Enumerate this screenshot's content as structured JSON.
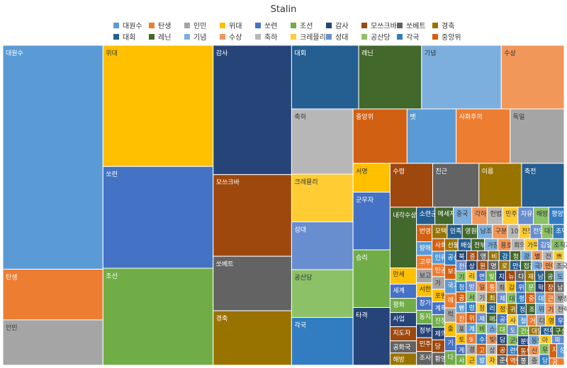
{
  "chart_data": {
    "type": "treemap",
    "title": "Stalin",
    "legend_placement": "top",
    "categories": [
      "대원수",
      "탄생",
      "인민",
      "위대",
      "쏘련",
      "조선",
      "감사",
      "모쓰크바",
      "쏘베트",
      "경축",
      "대회",
      "레닌",
      "기념",
      "수상",
      "축하",
      "크레믈리",
      "성대",
      "공산당",
      "각국",
      "중앙위"
    ],
    "colors": [
      "#5b9bd5",
      "#ed7d31",
      "#a5a5a5",
      "#ffc000",
      "#4472c4",
      "#70ad47",
      "#264478",
      "#9e480e",
      "#636363",
      "#997300",
      "#255e91",
      "#43682b",
      "#7cafdd",
      "#f1975a",
      "#b7b7b7",
      "#ffcd33",
      "#698ed0",
      "#8cc168",
      "#327dc2",
      "#d26012"
    ],
    "top_items": [
      {
        "name": "대원수",
        "value": 420
      },
      {
        "name": "탄생",
        "value": 95
      },
      {
        "name": "인민",
        "value": 85
      },
      {
        "name": "위대",
        "value": 250
      },
      {
        "name": "쏘련",
        "value": 210
      },
      {
        "name": "조선",
        "value": 200
      },
      {
        "name": "감사",
        "value": 190
      },
      {
        "name": "모쓰크바",
        "value": 120
      },
      {
        "name": "쏘베트",
        "value": 80
      },
      {
        "name": "경축",
        "value": 80
      },
      {
        "name": "대회",
        "value": 80
      },
      {
        "name": "레닌",
        "value": 75
      },
      {
        "name": "기념",
        "value": 95
      },
      {
        "name": "수상",
        "value": 75
      },
      {
        "name": "축하",
        "value": 75
      },
      {
        "name": "크레믈리",
        "value": 55
      },
      {
        "name": "성대",
        "value": 55
      },
      {
        "name": "공산당",
        "value": 55
      },
      {
        "name": "각국",
        "value": 55
      },
      {
        "name": "중앙위",
        "value": 55
      },
      {
        "name": "뱃",
        "value": 50
      },
      {
        "name": "사회주의",
        "value": 55
      },
      {
        "name": "독일",
        "value": 55
      },
      {
        "name": "서명",
        "value": 20
      },
      {
        "name": "군무자",
        "value": 40
      },
      {
        "name": "승리",
        "value": 40
      },
      {
        "name": "타격",
        "value": 40
      },
      {
        "name": "수령",
        "value": 35
      },
      {
        "name": "친근",
        "value": 38
      },
      {
        "name": "이름",
        "value": 35
      },
      {
        "name": "축전",
        "value": 35
      },
      {
        "name": "내각수상",
        "value": 30
      }
    ],
    "grid_words": [
      "만세",
      "세계",
      "평화",
      "사업",
      "지도자",
      "공화국",
      "해방",
      "소련군",
      "메세지",
      "중국",
      "각하",
      "헌법",
      "민주",
      "자유",
      "해방자",
      "평양",
      "번영",
      "향해",
      "고무자",
      "보고",
      "서한",
      "참가",
      "동지",
      "정부",
      "민주주의",
      "조사",
      "모택동",
      "민족",
      "영원",
      "남조선",
      "구분대",
      "10월혁명",
      "전쟁",
      "전달",
      "대동령",
      "조약",
      "사회",
      "인류",
      "민공",
      "가",
      "포병",
      "계획",
      "진정",
      "제의",
      "당",
      "황영",
      "선물",
      "배설",
      "전부",
      "가장",
      "용호",
      "회의",
      "가득",
      "김일성",
      "조직자",
      "공산주의",
      "보장",
      "국가",
      "레",
      "럭",
      "출",
      "기",
      "다",
      "북",
      "증",
      "앵",
      "비",
      "강",
      "청",
      "광",
      "별",
      "전",
      "쁘",
      "전주",
      "기",
      "청",
      "공",
      "빵",
      "진",
      "포",
      "토",
      "게",
      "사",
      "상",
      "원",
      "명",
      "로",
      "만족보위성",
      "접견",
      "국제",
      "만대",
      "조국",
      "리",
      "방",
      "서",
      "령",
      "위",
      "계",
      "9",
      "경",
      "근",
      "면",
      "빛",
      "지",
      "뉴",
      "다",
      "재결",
      "남",
      "공",
      "도",
      "일",
      "기",
      "정",
      "제",
      "비",
      "수",
      "고",
      "발",
      "통",
      "최고쏘",
      "감마",
      "위력",
      "문",
      "학",
      "장",
      "남",
      "최",
      "리",
      "메시지",
      "스승",
      "빛나",
      "상",
      "자",
      "제",
      "대",
      "평사",
      "중심",
      "대표단",
      "근로인민",
      "부장",
      "정책",
      "공장",
      "대",
      "담",
      "공",
      "준비",
      "귀하",
      "정의",
      "조선",
      "위원",
      "기쁨",
      "전력",
      "사",
      "도",
      "군대",
      "련맹",
      "역량",
      "철거",
      "거리",
      "디",
      "영",
      "우리",
      "건설",
      "분단",
      "동부",
      "불",
      "대답",
      "전우",
      "구성",
      "동맹",
      "신",
      "중",
      "아",
      "파",
      "우",
      "당",
      "지",
      "성",
      "공"
    ],
    "grid_values": [
      8,
      7,
      7,
      7,
      7,
      6,
      6,
      6,
      6,
      6,
      5,
      5,
      5,
      5,
      5,
      5,
      5,
      4,
      4,
      4,
      4,
      4,
      4,
      4,
      4,
      4,
      4,
      4,
      4,
      4,
      4,
      3,
      3,
      3,
      3,
      3,
      3,
      3,
      3,
      3,
      3,
      3,
      3,
      3,
      3,
      3,
      3,
      3,
      3,
      3,
      3,
      3,
      3,
      3,
      3,
      3,
      3,
      3,
      3,
      3,
      3,
      3,
      3,
      2,
      2,
      2,
      2,
      2,
      2,
      2,
      2,
      2,
      2,
      2,
      2,
      2,
      2,
      2,
      2,
      2,
      2,
      2,
      2,
      2,
      2,
      2,
      2,
      2,
      2,
      2,
      2,
      2,
      2,
      2,
      2,
      2,
      2,
      2,
      2,
      2,
      2,
      2,
      2,
      2,
      2,
      2,
      2,
      2,
      2,
      2,
      2,
      2,
      2,
      2,
      2,
      2,
      2,
      2,
      2,
      2,
      2,
      2,
      2,
      2,
      2,
      2,
      2,
      2,
      2,
      2,
      2,
      2,
      2,
      2,
      2,
      2,
      2,
      2,
      2,
      2,
      2,
      2,
      2,
      2,
      2,
      2,
      2,
      2,
      2,
      2,
      2,
      2,
      2,
      2,
      2,
      2,
      2,
      2,
      2,
      2,
      2,
      2,
      2,
      2,
      2,
      2,
      2,
      2,
      2,
      2,
      2,
      2,
      2,
      2,
      2,
      2,
      2,
      2,
      2,
      2,
      2,
      2,
      2,
      2,
      2,
      2,
      2,
      2,
      2,
      2,
      2,
      2,
      2,
      2,
      2,
      2,
      2,
      2,
      2,
      2,
      2,
      2,
      2,
      2,
      2
    ]
  }
}
